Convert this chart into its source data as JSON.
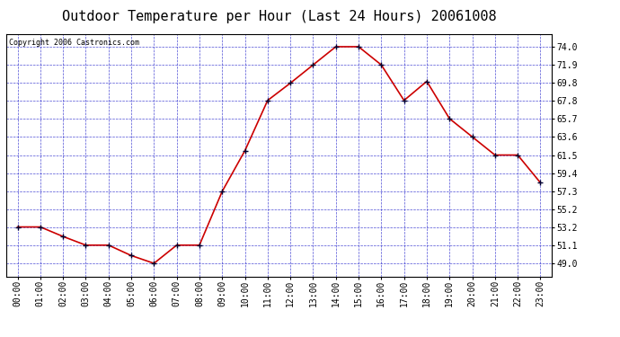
{
  "title": "Outdoor Temperature per Hour (Last 24 Hours) 20061008",
  "copyright": "Copyright 2006 Castronics.com",
  "hours": [
    "00:00",
    "01:00",
    "02:00",
    "03:00",
    "04:00",
    "05:00",
    "06:00",
    "07:00",
    "08:00",
    "09:00",
    "10:00",
    "11:00",
    "12:00",
    "13:00",
    "14:00",
    "15:00",
    "16:00",
    "17:00",
    "18:00",
    "19:00",
    "20:00",
    "21:00",
    "22:00",
    "23:00"
  ],
  "temps": [
    53.2,
    53.2,
    52.1,
    51.1,
    51.1,
    49.9,
    49.0,
    51.1,
    51.1,
    57.3,
    62.0,
    67.8,
    69.8,
    71.9,
    74.0,
    74.0,
    71.9,
    67.8,
    70.0,
    65.7,
    63.6,
    61.5,
    61.5,
    58.3
  ],
  "y_ticks": [
    49.0,
    51.1,
    53.2,
    55.2,
    57.3,
    59.4,
    61.5,
    63.6,
    65.7,
    67.8,
    69.8,
    71.9,
    74.0
  ],
  "ylim": [
    47.5,
    75.5
  ],
  "line_color": "#cc0000",
  "marker_color": "#000033",
  "bg_color": "#ffffff",
  "grid_color": "#2222cc",
  "plot_bg": "#ffffff",
  "title_fontsize": 11,
  "copyright_fontsize": 6,
  "tick_fontsize": 7,
  "ytick_fontsize": 7
}
